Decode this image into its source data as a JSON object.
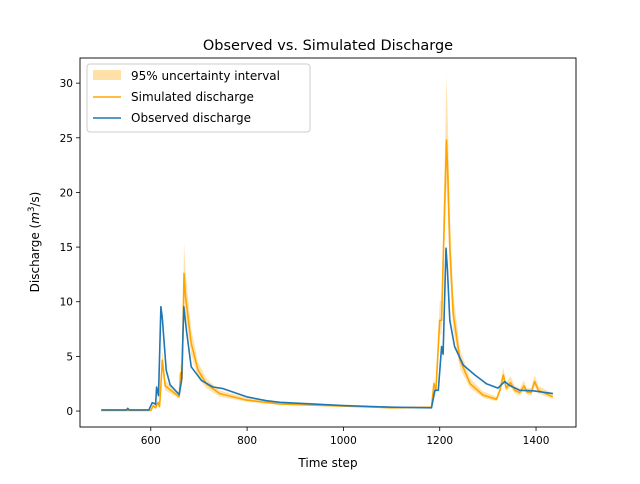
{
  "chart_data": {
    "type": "line",
    "title": "Observed vs. Simulated Discharge",
    "xlabel": "Time step",
    "ylabel_prefix": "Discharge (",
    "ylabel_unit_m": "m",
    "ylabel_unit_exp": "3",
    "ylabel_suffix": "/s)",
    "xlim": [
      453,
      1483
    ],
    "ylim": [
      -1.46,
      32.3
    ],
    "xticks": [
      600,
      800,
      1000,
      1200,
      1400
    ],
    "xtick_labels": [
      "600",
      "800",
      "1000",
      "1200",
      "1400"
    ],
    "yticks": [
      0,
      5,
      10,
      15,
      20,
      25,
      30
    ],
    "ytick_labels": [
      "0",
      "5",
      "10",
      "15",
      "20",
      "25",
      "30"
    ],
    "grid": false,
    "legend_position": "top-left",
    "colors": {
      "band": "#ffe0a6",
      "simulated": "#ffa500",
      "observed": "#1f77b4"
    },
    "legend": [
      "95% uncertainty interval",
      "Simulated discharge",
      "Observed discharge"
    ],
    "band": {
      "name": "95% uncertainty interval",
      "x": [
        497,
        600,
        605,
        610,
        615,
        618,
        620,
        624,
        630,
        659,
        662,
        665,
        669,
        672,
        684,
        698,
        715,
        743,
        799,
        868,
        1000,
        1100,
        1183,
        1188,
        1192,
        1200,
        1204,
        1207,
        1214,
        1217,
        1221,
        1228,
        1242,
        1263,
        1290,
        1318,
        1325,
        1332,
        1338,
        1347,
        1356,
        1366,
        1375,
        1381,
        1390,
        1397,
        1405,
        1435
      ],
      "lower": [
        0.03,
        0.03,
        0.4,
        0.25,
        0.65,
        0.3,
        1.2,
        3.9,
        1.9,
        1.1,
        2.9,
        2.5,
        10.5,
        8.8,
        5.2,
        3.1,
        2.1,
        1.3,
        0.85,
        0.54,
        0.38,
        0.25,
        0.3,
        2.1,
        1.6,
        7.0,
        7.0,
        11.4,
        20.9,
        18.0,
        12.6,
        7.5,
        3.9,
        2.1,
        1.2,
        0.9,
        1.6,
        2.8,
        1.8,
        2.2,
        1.6,
        1.4,
        1.9,
        1.5,
        1.4,
        2.3,
        1.6,
        1.1
      ],
      "upper": [
        0.07,
        0.07,
        0.6,
        0.4,
        1.0,
        0.5,
        1.8,
        5.6,
        2.8,
        1.6,
        4.3,
        3.7,
        15.5,
        12.8,
        7.5,
        4.5,
        3.0,
        1.9,
        1.2,
        0.77,
        0.54,
        0.36,
        0.42,
        3.0,
        2.3,
        10.1,
        10.1,
        16.5,
        30.7,
        26.1,
        18.3,
        10.8,
        5.7,
        3.0,
        1.8,
        1.3,
        2.3,
        4.0,
        2.6,
        3.2,
        2.3,
        2.1,
        2.8,
        2.1,
        2.1,
        3.3,
        2.3,
        1.6
      ]
    },
    "series": [
      {
        "name": "Simulated discharge",
        "x": [
          497,
          600,
          605,
          610,
          615,
          618,
          620,
          624,
          630,
          659,
          662,
          665,
          669,
          672,
          684,
          698,
          715,
          743,
          799,
          868,
          1000,
          1100,
          1183,
          1188,
          1192,
          1200,
          1204,
          1207,
          1214,
          1217,
          1221,
          1228,
          1242,
          1263,
          1290,
          1318,
          1325,
          1332,
          1338,
          1347,
          1356,
          1366,
          1375,
          1381,
          1390,
          1397,
          1405,
          1435
        ],
        "y": [
          0.05,
          0.05,
          0.5,
          0.3,
          0.8,
          0.4,
          1.5,
          4.65,
          2.3,
          1.3,
          3.5,
          3.0,
          12.6,
          10.5,
          6.2,
          3.75,
          2.5,
          1.6,
          1.0,
          0.64,
          0.45,
          0.3,
          0.35,
          2.5,
          1.9,
          8.3,
          8.3,
          13.5,
          24.8,
          21.4,
          15.0,
          8.9,
          4.7,
          2.5,
          1.46,
          1.07,
          1.9,
          3.3,
          2.1,
          2.6,
          1.9,
          1.7,
          2.3,
          1.75,
          1.7,
          2.7,
          1.9,
          1.3
        ]
      },
      {
        "name": "Observed discharge",
        "x": [
          497,
          550,
          552,
          555,
          596,
          603,
          607,
          610,
          612,
          616,
          621,
          624,
          632,
          640,
          659,
          664,
          668.5,
          674,
          684,
          705,
          729,
          750,
          799,
          840,
          868,
          1000,
          1100,
          1183,
          1190,
          1197,
          1204,
          1207,
          1213,
          1216,
          1221,
          1231,
          1249,
          1273,
          1297,
          1321,
          1335,
          1345,
          1366,
          1394,
          1435
        ],
        "y": [
          0.1,
          0.1,
          0.25,
          0.1,
          0.1,
          0.76,
          0.7,
          0.6,
          2.2,
          1.4,
          9.55,
          8.5,
          3.75,
          2.4,
          1.5,
          2.8,
          9.55,
          7.4,
          4.05,
          2.8,
          2.2,
          2.05,
          1.3,
          0.95,
          0.8,
          0.5,
          0.35,
          0.3,
          1.9,
          1.9,
          5.9,
          5.2,
          14.9,
          13.0,
          8.3,
          5.9,
          4.2,
          3.3,
          2.5,
          2.1,
          2.7,
          2.35,
          1.9,
          1.85,
          1.6
        ]
      }
    ]
  }
}
